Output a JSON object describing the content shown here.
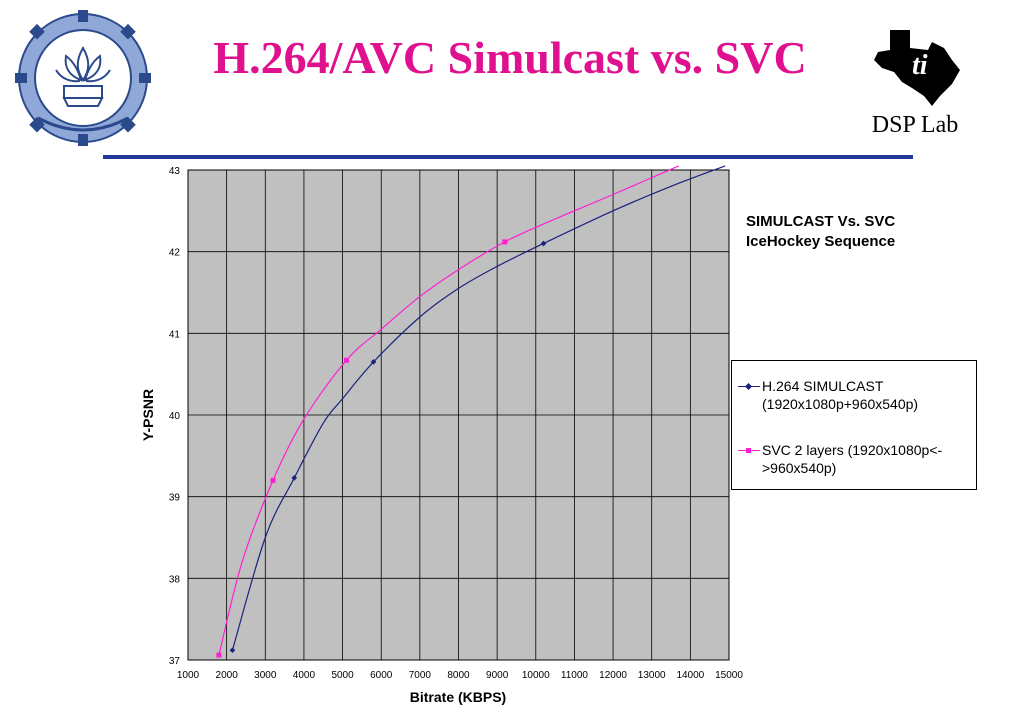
{
  "slide": {
    "title": "H.264/AVC Simulcast vs. SVC",
    "lab_label": "DSP Lab"
  },
  "logos": {
    "left": "iit-bombay-emblem",
    "right": "ti-texas-logo"
  },
  "colors": {
    "title": "#e0118f",
    "rule": "#1f3a99",
    "plot_bg": "#c0c0c0",
    "series_h264": "#1a237e",
    "series_svc": "#ff1fd2"
  },
  "chart_data": {
    "type": "line",
    "title": "SIMULCAST Vs. SVC IceHockey Sequence",
    "xlabel": "Bitrate (KBPS)",
    "ylabel": "Y-PSNR",
    "xlim": [
      1000,
      15000
    ],
    "ylim": [
      37,
      43
    ],
    "xticks": [
      1000,
      2000,
      3000,
      4000,
      5000,
      6000,
      7000,
      8000,
      9000,
      10000,
      11000,
      12000,
      13000,
      14000,
      15000
    ],
    "yticks": [
      37,
      38,
      39,
      40,
      41,
      42,
      43
    ],
    "grid": true,
    "legend_position": "right",
    "series": [
      {
        "name": "H.264 SIMULCAST (1920x1080p+960x540p)",
        "color": "#1a237e",
        "marker": "diamond",
        "points": [
          [
            2150,
            37.12
          ],
          [
            3750,
            39.23
          ],
          [
            5800,
            40.65
          ],
          [
            10200,
            42.1
          ]
        ],
        "curve": [
          [
            2150,
            37.12
          ],
          [
            3000,
            38.5
          ],
          [
            3750,
            39.23
          ],
          [
            4500,
            39.9
          ],
          [
            5000,
            40.2
          ],
          [
            5800,
            40.65
          ],
          [
            7000,
            41.2
          ],
          [
            8000,
            41.55
          ],
          [
            9000,
            41.82
          ],
          [
            10200,
            42.1
          ],
          [
            12000,
            42.5
          ],
          [
            13500,
            42.8
          ],
          [
            14900,
            43.05
          ]
        ]
      },
      {
        "name": "SVC 2 layers (1920x1080p<->960x540p)",
        "color": "#ff1fd2",
        "marker": "square",
        "points": [
          [
            1800,
            37.06
          ],
          [
            3200,
            39.2
          ],
          [
            5100,
            40.67
          ],
          [
            9200,
            42.12
          ]
        ],
        "curve": [
          [
            1800,
            37.06
          ],
          [
            2400,
            38.2
          ],
          [
            3200,
            39.2
          ],
          [
            4000,
            39.95
          ],
          [
            5100,
            40.67
          ],
          [
            6000,
            41.05
          ],
          [
            7000,
            41.45
          ],
          [
            8000,
            41.78
          ],
          [
            9200,
            42.12
          ],
          [
            10500,
            42.4
          ],
          [
            12000,
            42.7
          ],
          [
            13700,
            43.05
          ]
        ]
      }
    ]
  }
}
